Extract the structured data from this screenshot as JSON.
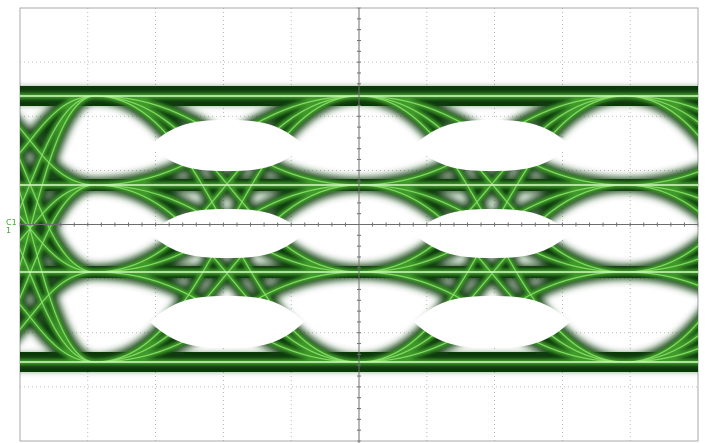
{
  "scope": {
    "channel_marker": "C1",
    "channel_level_indicator": "1",
    "colors": {
      "background": "#ffffff",
      "grid": "#a8a8a8",
      "trace_dark": "#0f3a0a",
      "trace_mid": "#3f9a2c",
      "trace_bright": "#8fe66d",
      "trace_core": "#ecffe2",
      "marker": "#3aa12b"
    },
    "display": {
      "mode": "eye-diagram",
      "grid": true,
      "graticule_divisions_x": 10,
      "graticule_divisions_y": 8,
      "levels": 4,
      "unit_intervals_visible": 2
    }
  }
}
